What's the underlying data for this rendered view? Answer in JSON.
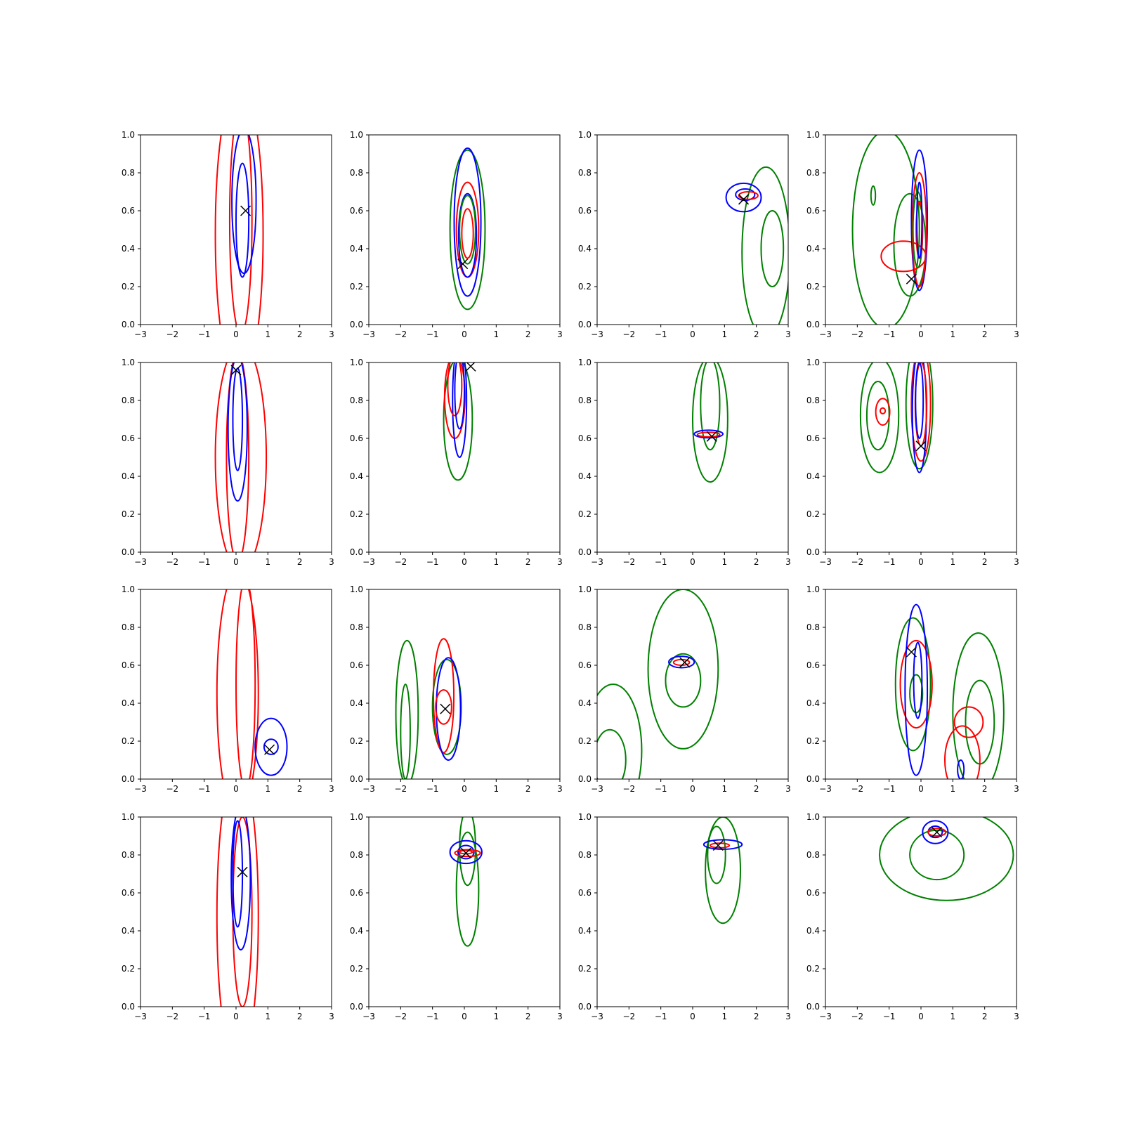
{
  "chart_data": {
    "type": "contour",
    "layout": {
      "rows": 4,
      "cols": 4
    },
    "xlim": [
      -3,
      3
    ],
    "ylim": [
      0,
      1
    ],
    "xticks": [
      "−3",
      "−2",
      "−1",
      "0",
      "1",
      "2",
      "3"
    ],
    "xtick_values": [
      -3,
      -2,
      -1,
      0,
      1,
      2,
      3
    ],
    "yticks": [
      "0.0",
      "0.2",
      "0.4",
      "0.6",
      "0.8",
      "1.0"
    ],
    "ytick_values": [
      0,
      0.2,
      0.4,
      0.6,
      0.8,
      1.0
    ],
    "colors": {
      "red": "#ff0000",
      "blue": "#0000ff",
      "green": "#008000",
      "marker": "#000000"
    },
    "panels": [
      {
        "row": 0,
        "col": 0,
        "marker": [
          0.3,
          0.6
        ],
        "contours": [
          {
            "color": "red",
            "cx": 0.1,
            "cy": 0.48,
            "rx": 0.75,
            "ry": 0.8
          },
          {
            "color": "red",
            "cx": 0.15,
            "cy": 0.55,
            "rx": 0.35,
            "ry": 0.6
          },
          {
            "color": "blue",
            "cx": 0.25,
            "cy": 0.65,
            "rx": 0.38,
            "ry": 0.38
          },
          {
            "color": "blue",
            "cx": 0.2,
            "cy": 0.55,
            "rx": 0.2,
            "ry": 0.3
          }
        ]
      },
      {
        "row": 0,
        "col": 1,
        "marker": [
          -0.05,
          0.32
        ],
        "contours": [
          {
            "color": "green",
            "cx": 0.1,
            "cy": 0.5,
            "rx": 0.55,
            "ry": 0.42
          },
          {
            "color": "blue",
            "cx": 0.1,
            "cy": 0.54,
            "rx": 0.42,
            "ry": 0.39
          },
          {
            "color": "red",
            "cx": 0.1,
            "cy": 0.5,
            "rx": 0.35,
            "ry": 0.25
          },
          {
            "color": "blue",
            "cx": 0.1,
            "cy": 0.47,
            "rx": 0.28,
            "ry": 0.22
          },
          {
            "color": "green",
            "cx": 0.1,
            "cy": 0.5,
            "rx": 0.25,
            "ry": 0.18
          },
          {
            "color": "red",
            "cx": 0.1,
            "cy": 0.48,
            "rx": 0.18,
            "ry": 0.13
          }
        ]
      },
      {
        "row": 0,
        "col": 2,
        "marker": [
          1.6,
          0.66
        ],
        "contours": [
          {
            "color": "green",
            "cx": 2.3,
            "cy": 0.38,
            "rx": 0.75,
            "ry": 0.45
          },
          {
            "color": "green",
            "cx": 2.5,
            "cy": 0.4,
            "rx": 0.35,
            "ry": 0.2
          },
          {
            "color": "blue",
            "cx": 1.6,
            "cy": 0.67,
            "rx": 0.55,
            "ry": 0.075
          },
          {
            "color": "blue",
            "cx": 1.65,
            "cy": 0.685,
            "rx": 0.3,
            "ry": 0.03
          },
          {
            "color": "red",
            "cx": 1.75,
            "cy": 0.68,
            "rx": 0.3,
            "ry": 0.02
          }
        ]
      },
      {
        "row": 0,
        "col": 3,
        "marker": [
          -0.3,
          0.24
        ],
        "contours": [
          {
            "color": "green",
            "cx": -1.1,
            "cy": 0.5,
            "rx": 1.05,
            "ry": 0.52
          },
          {
            "color": "green",
            "cx": -1.5,
            "cy": 0.68,
            "rx": 0.07,
            "ry": 0.05
          },
          {
            "color": "green",
            "cx": -0.35,
            "cy": 0.42,
            "rx": 0.5,
            "ry": 0.27
          },
          {
            "color": "red",
            "cx": -0.55,
            "cy": 0.36,
            "rx": 0.7,
            "ry": 0.08
          },
          {
            "color": "blue",
            "cx": -0.05,
            "cy": 0.55,
            "rx": 0.25,
            "ry": 0.37
          },
          {
            "color": "red",
            "cx": -0.05,
            "cy": 0.5,
            "rx": 0.22,
            "ry": 0.3
          },
          {
            "color": "green",
            "cx": -0.1,
            "cy": 0.5,
            "rx": 0.15,
            "ry": 0.2
          },
          {
            "color": "red",
            "cx": -0.05,
            "cy": 0.5,
            "rx": 0.1,
            "ry": 0.15
          },
          {
            "color": "blue",
            "cx": -0.05,
            "cy": 0.55,
            "rx": 0.08,
            "ry": 0.2
          }
        ]
      },
      {
        "row": 1,
        "col": 0,
        "marker": [
          0.0,
          0.96
        ],
        "contours": [
          {
            "color": "red",
            "cx": 0.15,
            "cy": 0.5,
            "rx": 0.8,
            "ry": 0.6
          },
          {
            "color": "red",
            "cx": 0.05,
            "cy": 0.5,
            "rx": 0.35,
            "ry": 0.55
          },
          {
            "color": "blue",
            "cx": 0.05,
            "cy": 0.65,
            "rx": 0.3,
            "ry": 0.38
          },
          {
            "color": "blue",
            "cx": 0.05,
            "cy": 0.7,
            "rx": 0.15,
            "ry": 0.27
          }
        ]
      },
      {
        "row": 1,
        "col": 1,
        "marker": [
          0.2,
          0.98
        ],
        "contours": [
          {
            "color": "green",
            "cx": -0.2,
            "cy": 0.7,
            "rx": 0.45,
            "ry": 0.32
          },
          {
            "color": "red",
            "cx": -0.3,
            "cy": 0.82,
            "rx": 0.32,
            "ry": 0.22
          },
          {
            "color": "blue",
            "cx": -0.15,
            "cy": 0.8,
            "rx": 0.22,
            "ry": 0.3
          },
          {
            "color": "red",
            "cx": -0.3,
            "cy": 0.88,
            "rx": 0.22,
            "ry": 0.16
          },
          {
            "color": "blue",
            "cx": -0.15,
            "cy": 0.85,
            "rx": 0.15,
            "ry": 0.2
          }
        ]
      },
      {
        "row": 1,
        "col": 2,
        "marker": [
          0.6,
          0.61
        ],
        "contours": [
          {
            "color": "green",
            "cx": 0.55,
            "cy": 0.7,
            "rx": 0.55,
            "ry": 0.33
          },
          {
            "color": "green",
            "cx": 0.55,
            "cy": 0.78,
            "rx": 0.3,
            "ry": 0.24
          },
          {
            "color": "blue",
            "cx": 0.5,
            "cy": 0.623,
            "rx": 0.45,
            "ry": 0.02
          },
          {
            "color": "red",
            "cx": 0.5,
            "cy": 0.62,
            "rx": 0.35,
            "ry": 0.012
          }
        ]
      },
      {
        "row": 1,
        "col": 3,
        "marker": [
          0.0,
          0.56
        ],
        "contours": [
          {
            "color": "green",
            "cx": -1.3,
            "cy": 0.72,
            "rx": 0.6,
            "ry": 0.3
          },
          {
            "color": "green",
            "cx": -1.35,
            "cy": 0.72,
            "rx": 0.35,
            "ry": 0.18
          },
          {
            "color": "red",
            "cx": -1.2,
            "cy": 0.74,
            "rx": 0.22,
            "ry": 0.07
          },
          {
            "color": "red",
            "cx": -1.2,
            "cy": 0.745,
            "rx": 0.08,
            "ry": 0.015
          },
          {
            "color": "green",
            "cx": -0.05,
            "cy": 0.78,
            "rx": 0.42,
            "ry": 0.34
          },
          {
            "color": "red",
            "cx": 0.0,
            "cy": 0.78,
            "rx": 0.3,
            "ry": 0.3
          },
          {
            "color": "blue",
            "cx": -0.05,
            "cy": 0.74,
            "rx": 0.22,
            "ry": 0.32
          },
          {
            "color": "red",
            "cx": 0.0,
            "cy": 0.78,
            "rx": 0.18,
            "ry": 0.22
          },
          {
            "color": "blue",
            "cx": -0.05,
            "cy": 0.8,
            "rx": 0.12,
            "ry": 0.2
          }
        ]
      },
      {
        "row": 2,
        "col": 0,
        "marker": [
          1.05,
          0.155
        ],
        "contours": [
          {
            "color": "red",
            "cx": 0.05,
            "cy": 0.45,
            "rx": 0.65,
            "ry": 0.65
          },
          {
            "color": "red",
            "cx": 0.3,
            "cy": 0.5,
            "rx": 0.3,
            "ry": 0.55
          },
          {
            "color": "blue",
            "cx": 1.1,
            "cy": 0.17,
            "rx": 0.5,
            "ry": 0.15
          },
          {
            "color": "blue",
            "cx": 1.1,
            "cy": 0.17,
            "rx": 0.22,
            "ry": 0.04
          }
        ]
      },
      {
        "row": 2,
        "col": 1,
        "marker": [
          -0.6,
          0.37
        ],
        "contours": [
          {
            "color": "green",
            "cx": -1.8,
            "cy": 0.35,
            "rx": 0.35,
            "ry": 0.38
          },
          {
            "color": "green",
            "cx": -1.85,
            "cy": 0.25,
            "rx": 0.15,
            "ry": 0.25
          },
          {
            "color": "green",
            "cx": -0.55,
            "cy": 0.38,
            "rx": 0.45,
            "ry": 0.25
          },
          {
            "color": "red",
            "cx": -0.65,
            "cy": 0.44,
            "rx": 0.32,
            "ry": 0.3
          },
          {
            "color": "blue",
            "cx": -0.5,
            "cy": 0.37,
            "rx": 0.38,
            "ry": 0.27
          },
          {
            "color": "red",
            "cx": -0.65,
            "cy": 0.38,
            "rx": 0.25,
            "ry": 0.09
          }
        ]
      },
      {
        "row": 2,
        "col": 2,
        "marker": [
          -0.25,
          0.615
        ],
        "contours": [
          {
            "color": "green",
            "cx": -2.5,
            "cy": 0.15,
            "rx": 0.9,
            "ry": 0.35
          },
          {
            "color": "green",
            "cx": -2.6,
            "cy": 0.1,
            "rx": 0.5,
            "ry": 0.16
          },
          {
            "color": "green",
            "cx": -0.3,
            "cy": 0.58,
            "rx": 1.1,
            "ry": 0.42
          },
          {
            "color": "green",
            "cx": -0.3,
            "cy": 0.52,
            "rx": 0.55,
            "ry": 0.14
          },
          {
            "color": "blue",
            "cx": -0.35,
            "cy": 0.617,
            "rx": 0.4,
            "ry": 0.03
          },
          {
            "color": "red",
            "cx": -0.35,
            "cy": 0.615,
            "rx": 0.25,
            "ry": 0.015
          }
        ]
      },
      {
        "row": 2,
        "col": 3,
        "marker": [
          -0.3,
          0.67
        ],
        "contours": [
          {
            "color": "green",
            "cx": -0.25,
            "cy": 0.5,
            "rx": 0.55,
            "ry": 0.35
          },
          {
            "color": "red",
            "cx": -0.15,
            "cy": 0.5,
            "rx": 0.5,
            "ry": 0.23
          },
          {
            "color": "blue",
            "cx": -0.15,
            "cy": 0.47,
            "rx": 0.35,
            "ry": 0.45
          },
          {
            "color": "green",
            "cx": -0.15,
            "cy": 0.45,
            "rx": 0.2,
            "ry": 0.1
          },
          {
            "color": "blue",
            "cx": -0.1,
            "cy": 0.52,
            "rx": 0.13,
            "ry": 0.2
          },
          {
            "color": "green",
            "cx": 1.8,
            "cy": 0.35,
            "rx": 0.8,
            "ry": 0.42
          },
          {
            "color": "green",
            "cx": 1.85,
            "cy": 0.3,
            "rx": 0.45,
            "ry": 0.22
          },
          {
            "color": "red",
            "cx": 1.5,
            "cy": 0.3,
            "rx": 0.45,
            "ry": 0.08
          },
          {
            "color": "red",
            "cx": 1.3,
            "cy": 0.1,
            "rx": 0.55,
            "ry": 0.18
          },
          {
            "color": "blue",
            "cx": 1.25,
            "cy": 0.05,
            "rx": 0.1,
            "ry": 0.05
          }
        ]
      },
      {
        "row": 3,
        "col": 0,
        "marker": [
          0.2,
          0.71
        ],
        "contours": [
          {
            "color": "red",
            "cx": 0.05,
            "cy": 0.48,
            "rx": 0.65,
            "ry": 0.8
          },
          {
            "color": "red",
            "cx": 0.2,
            "cy": 0.5,
            "rx": 0.3,
            "ry": 0.5
          },
          {
            "color": "blue",
            "cx": 0.15,
            "cy": 0.68,
            "rx": 0.3,
            "ry": 0.38
          },
          {
            "color": "blue",
            "cx": 0.05,
            "cy": 0.7,
            "rx": 0.15,
            "ry": 0.28
          }
        ]
      },
      {
        "row": 3,
        "col": 1,
        "marker": [
          0.05,
          0.81
        ],
        "contours": [
          {
            "color": "green",
            "cx": 0.1,
            "cy": 0.62,
            "rx": 0.35,
            "ry": 0.3
          },
          {
            "color": "green",
            "cx": 0.1,
            "cy": 0.84,
            "rx": 0.25,
            "ry": 0.2
          },
          {
            "color": "blue",
            "cx": 0.05,
            "cy": 0.815,
            "rx": 0.5,
            "ry": 0.06
          },
          {
            "color": "blue",
            "cx": 0.05,
            "cy": 0.815,
            "rx": 0.25,
            "ry": 0.035
          },
          {
            "color": "red",
            "cx": 0.1,
            "cy": 0.81,
            "rx": 0.4,
            "ry": 0.018
          },
          {
            "color": "red",
            "cx": 0.05,
            "cy": 0.815,
            "rx": 0.2,
            "ry": 0.009
          }
        ]
      },
      {
        "row": 3,
        "col": 2,
        "marker": [
          0.8,
          0.85
        ],
        "contours": [
          {
            "color": "green",
            "cx": 0.95,
            "cy": 0.72,
            "rx": 0.55,
            "ry": 0.28
          },
          {
            "color": "green",
            "cx": 0.75,
            "cy": 0.8,
            "rx": 0.28,
            "ry": 0.15
          },
          {
            "color": "blue",
            "cx": 0.95,
            "cy": 0.855,
            "rx": 0.6,
            "ry": 0.025
          },
          {
            "color": "red",
            "cx": 0.85,
            "cy": 0.85,
            "rx": 0.3,
            "ry": 0.012
          }
        ]
      },
      {
        "row": 3,
        "col": 3,
        "marker": [
          0.5,
          0.92
        ],
        "contours": [
          {
            "color": "green",
            "cx": 0.8,
            "cy": 0.8,
            "rx": 2.1,
            "ry": 0.24
          },
          {
            "color": "green",
            "cx": 0.5,
            "cy": 0.8,
            "rx": 0.85,
            "ry": 0.13
          },
          {
            "color": "blue",
            "cx": 0.45,
            "cy": 0.92,
            "rx": 0.4,
            "ry": 0.06
          },
          {
            "color": "blue",
            "cx": 0.45,
            "cy": 0.922,
            "rx": 0.22,
            "ry": 0.03
          },
          {
            "color": "red",
            "cx": 0.5,
            "cy": 0.92,
            "rx": 0.28,
            "ry": 0.02
          }
        ]
      }
    ]
  }
}
